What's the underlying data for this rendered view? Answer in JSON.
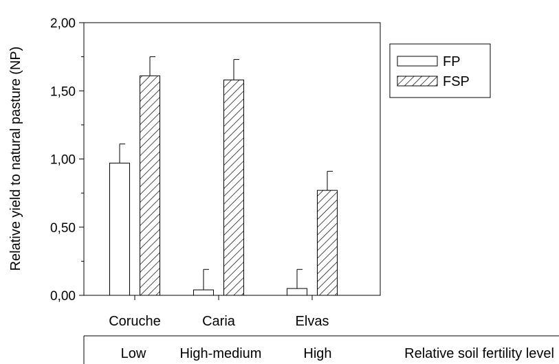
{
  "chart_data": {
    "type": "bar",
    "title": "",
    "xlabel": "",
    "ylabel": "Relative yield to natural pasture (NP)",
    "ylim": [
      0,
      2
    ],
    "yticks": [
      "0,00",
      "0,50",
      "1,00",
      "1,50",
      "2,00"
    ],
    "ytick_values": [
      0,
      0.5,
      1,
      1.5,
      2
    ],
    "categories": [
      "Coruche",
      "Caria",
      "Elvas"
    ],
    "series": [
      {
        "name": "FP",
        "pattern": "open",
        "values": [
          0.97,
          0.04,
          0.05
        ],
        "errors": [
          0.14,
          0.15,
          0.14
        ]
      },
      {
        "name": "FSP",
        "pattern": "hatch",
        "values": [
          1.61,
          1.58,
          0.77
        ],
        "errors": [
          0.14,
          0.15,
          0.14
        ]
      }
    ],
    "legend_position": "top-right",
    "grid": false,
    "fertility_row": {
      "labels": [
        "Low",
        "High-medium",
        "High"
      ],
      "caption": "Relative soil fertility level"
    }
  }
}
